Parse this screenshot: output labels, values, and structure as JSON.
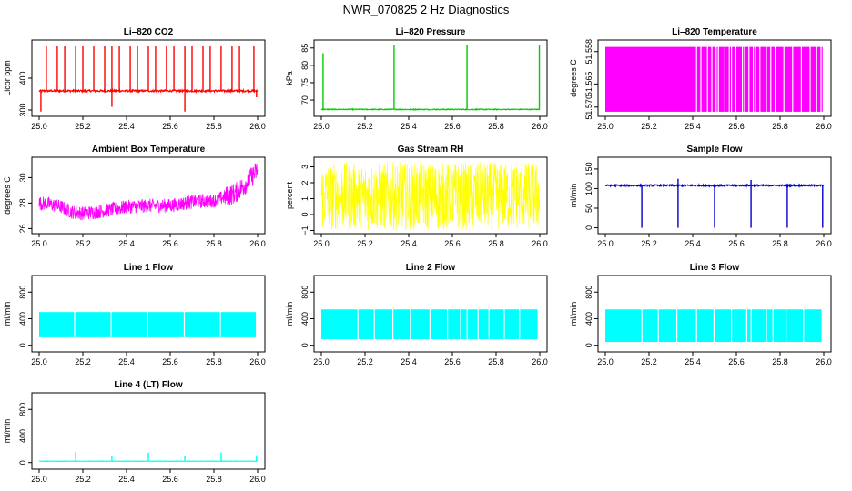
{
  "page_title": "NWR_070825  2 Hz Diagnostics",
  "chart_data": [
    {
      "type": "line",
      "title": "Li–820 CO2",
      "ylabel": "Licor ppm",
      "color": "#ff0000",
      "x_ticks": [
        "25.0",
        "25.2",
        "25.4",
        "25.6",
        "25.8",
        "26.0"
      ],
      "y_ticks": [
        "300",
        "400"
      ],
      "y_tick_values": [
        300,
        400
      ],
      "xlim": [
        25.0,
        26.0
      ],
      "ylim": [
        280,
        520
      ],
      "pattern": "spiky",
      "base": 360,
      "noise": 3,
      "spikes_up": [
        [
          25.033,
          500
        ],
        [
          25.083,
          500
        ],
        [
          25.117,
          500
        ],
        [
          25.167,
          500
        ],
        [
          25.2,
          500
        ],
        [
          25.25,
          500
        ],
        [
          25.3,
          500
        ],
        [
          25.333,
          500
        ],
        [
          25.367,
          500
        ],
        [
          25.417,
          500
        ],
        [
          25.45,
          500
        ],
        [
          25.5,
          500
        ],
        [
          25.533,
          500
        ],
        [
          25.583,
          500
        ],
        [
          25.617,
          500
        ],
        [
          25.667,
          500
        ],
        [
          25.7,
          500
        ],
        [
          25.75,
          500
        ],
        [
          25.783,
          500
        ],
        [
          25.833,
          500
        ],
        [
          25.883,
          500
        ],
        [
          25.917,
          500
        ],
        [
          25.983,
          500
        ]
      ],
      "spikes_down": [
        [
          25.008,
          295
        ],
        [
          25.333,
          310
        ],
        [
          25.667,
          295
        ],
        [
          25.995,
          340
        ]
      ]
    },
    {
      "type": "line",
      "title": "Li–820 Pressure",
      "ylabel": "kPa",
      "color": "#00cc00",
      "x_ticks": [
        "25.0",
        "25.2",
        "25.4",
        "25.6",
        "25.8",
        "26.0"
      ],
      "y_ticks": [
        "70",
        "75",
        "80",
        "85"
      ],
      "y_tick_values": [
        70,
        75,
        80,
        85
      ],
      "xlim": [
        25.0,
        26.0
      ],
      "ylim": [
        65.3,
        87.3
      ],
      "pattern": "spiky",
      "base": 67.3,
      "noise": 0.12,
      "spikes_up": [
        [
          25.008,
          83.5
        ],
        [
          25.333,
          86.0
        ],
        [
          25.667,
          86.0
        ],
        [
          25.998,
          86.0
        ]
      ],
      "spikes_down": []
    },
    {
      "type": "area",
      "title": "Li–820 Temperature",
      "ylabel": "degrees C",
      "color": "#ff00ff",
      "x_ticks": [
        "25.0",
        "25.2",
        "25.4",
        "25.6",
        "25.8",
        "26.0"
      ],
      "y_ticks": [
        "51.570",
        "51.565",
        "51.558"
      ],
      "y_tick_values": [
        51.57,
        51.565,
        51.558
      ],
      "xlim": [
        25.0,
        26.0
      ],
      "ylim": [
        51.572,
        51.5555
      ],
      "pattern": "band",
      "band": [
        51.557,
        51.571
      ],
      "gaps": [
        25.42,
        25.44,
        25.47,
        25.49,
        25.51,
        25.52,
        25.55,
        25.57,
        25.58,
        25.6,
        25.63,
        25.64,
        25.66,
        25.68,
        25.69,
        25.71,
        25.74,
        25.76,
        25.78,
        25.82,
        25.86,
        25.9,
        25.94,
        25.97,
        25.99
      ]
    },
    {
      "type": "line",
      "title": "Ambient Box Temperature",
      "ylabel": "degrees C",
      "color": "#ff00ff",
      "x_ticks": [
        "25.0",
        "25.2",
        "25.4",
        "25.6",
        "25.8",
        "26.0"
      ],
      "y_ticks": [
        "26",
        "28",
        "30"
      ],
      "y_tick_values": [
        26,
        28,
        30
      ],
      "xlim": [
        25.0,
        26.0
      ],
      "ylim": [
        25.6,
        31.6
      ],
      "pattern": "noisy-trend",
      "trend_x": [
        25.0,
        25.05,
        25.1,
        25.15,
        25.2,
        25.3,
        25.4,
        25.5,
        25.6,
        25.7,
        25.8,
        25.9,
        25.95,
        26.0
      ],
      "trend_y": [
        28.0,
        27.9,
        27.7,
        27.3,
        27.2,
        27.4,
        27.7,
        27.8,
        27.8,
        28.1,
        28.2,
        28.8,
        29.6,
        30.6
      ],
      "amp": 0.55
    },
    {
      "type": "line",
      "title": "Gas Stream RH",
      "ylabel": "percent",
      "color": "#ffff00",
      "x_ticks": [
        "25.0",
        "25.2",
        "25.4",
        "25.6",
        "25.8",
        "26.0"
      ],
      "y_ticks": [
        "−1",
        "0",
        "1",
        "2",
        "3"
      ],
      "y_tick_values": [
        -1,
        0,
        1,
        2,
        3
      ],
      "xlim": [
        25.0,
        26.0
      ],
      "ylim": [
        -1.2,
        3.6
      ],
      "pattern": "band",
      "band": [
        -1.0,
        3.3
      ]
    },
    {
      "type": "line",
      "title": "Sample Flow",
      "ylabel": "ml/min",
      "color": "#0000cc",
      "x_ticks": [
        "25.0",
        "25.2",
        "25.4",
        "25.6",
        "25.8",
        "26.0"
      ],
      "y_ticks": [
        "0",
        "50",
        "100",
        "150"
      ],
      "y_tick_values": [
        0,
        50,
        100,
        150
      ],
      "xlim": [
        25.0,
        26.0
      ],
      "ylim": [
        -15,
        180
      ],
      "pattern": "spiky",
      "base": 108,
      "noise": 2,
      "spikes_up": [
        [
          25.333,
          125
        ],
        [
          25.667,
          122
        ]
      ],
      "spikes_down": [
        [
          25.167,
          0
        ],
        [
          25.333,
          0
        ],
        [
          25.5,
          0
        ],
        [
          25.667,
          0
        ],
        [
          25.833,
          0
        ],
        [
          25.995,
          0
        ]
      ]
    },
    {
      "type": "area",
      "title": "Line 1 Flow",
      "ylabel": "ml/min",
      "color": "#00ffff",
      "x_ticks": [
        "25.0",
        "25.2",
        "25.4",
        "25.6",
        "25.8",
        "26.0"
      ],
      "y_ticks": [
        "0",
        "400",
        "800"
      ],
      "y_tick_values": [
        0,
        400,
        800
      ],
      "xlim": [
        25.0,
        26.0
      ],
      "ylim": [
        -100,
        1050
      ],
      "pattern": "band",
      "band": [
        120,
        500
      ],
      "gaps": [
        25.165,
        25.332,
        25.5,
        25.667,
        25.832,
        25.997
      ]
    },
    {
      "type": "area",
      "title": "Line 2 Flow",
      "ylabel": "ml/min",
      "color": "#00ffff",
      "x_ticks": [
        "25.0",
        "25.2",
        "25.4",
        "25.6",
        "25.8",
        "26.0"
      ],
      "y_ticks": [
        "0",
        "400",
        "800"
      ],
      "y_tick_values": [
        0,
        400,
        800
      ],
      "xlim": [
        25.0,
        26.0
      ],
      "ylim": [
        -100,
        1050
      ],
      "pattern": "band",
      "band": [
        90,
        540
      ],
      "gaps": [
        25.17,
        25.245,
        25.33,
        25.41,
        25.5,
        25.58,
        25.64,
        25.67,
        25.72,
        25.77,
        25.84,
        25.91,
        25.995
      ]
    },
    {
      "type": "area",
      "title": "Line 3 Flow",
      "ylabel": "ml/min",
      "color": "#00ffff",
      "x_ticks": [
        "25.0",
        "25.2",
        "25.4",
        "25.6",
        "25.8",
        "26.0"
      ],
      "y_ticks": [
        "0",
        "400",
        "800"
      ],
      "y_tick_values": [
        0,
        400,
        800
      ],
      "xlim": [
        25.0,
        26.0
      ],
      "ylim": [
        -100,
        1050
      ],
      "pattern": "band",
      "band": [
        50,
        540
      ],
      "gaps": [
        25.17,
        25.245,
        25.33,
        25.42,
        25.5,
        25.58,
        25.65,
        25.67,
        25.74,
        25.77,
        25.83,
        25.91,
        25.995
      ]
    },
    {
      "type": "line",
      "title": "Line 4 (LT) Flow",
      "ylabel": "ml/min",
      "color": "#00ffff",
      "x_ticks": [
        "25.0",
        "25.2",
        "25.4",
        "25.6",
        "25.8",
        "26.0"
      ],
      "y_ticks": [
        "0",
        "400",
        "800"
      ],
      "y_tick_values": [
        0,
        400,
        800
      ],
      "xlim": [
        25.0,
        26.0
      ],
      "ylim": [
        -100,
        1050
      ],
      "pattern": "spiky",
      "base": 20,
      "noise": 3,
      "spikes_up": [
        [
          25.167,
          160
        ],
        [
          25.333,
          100
        ],
        [
          25.5,
          150
        ],
        [
          25.667,
          100
        ],
        [
          25.833,
          150
        ],
        [
          25.995,
          110
        ]
      ],
      "spikes_down": []
    }
  ]
}
